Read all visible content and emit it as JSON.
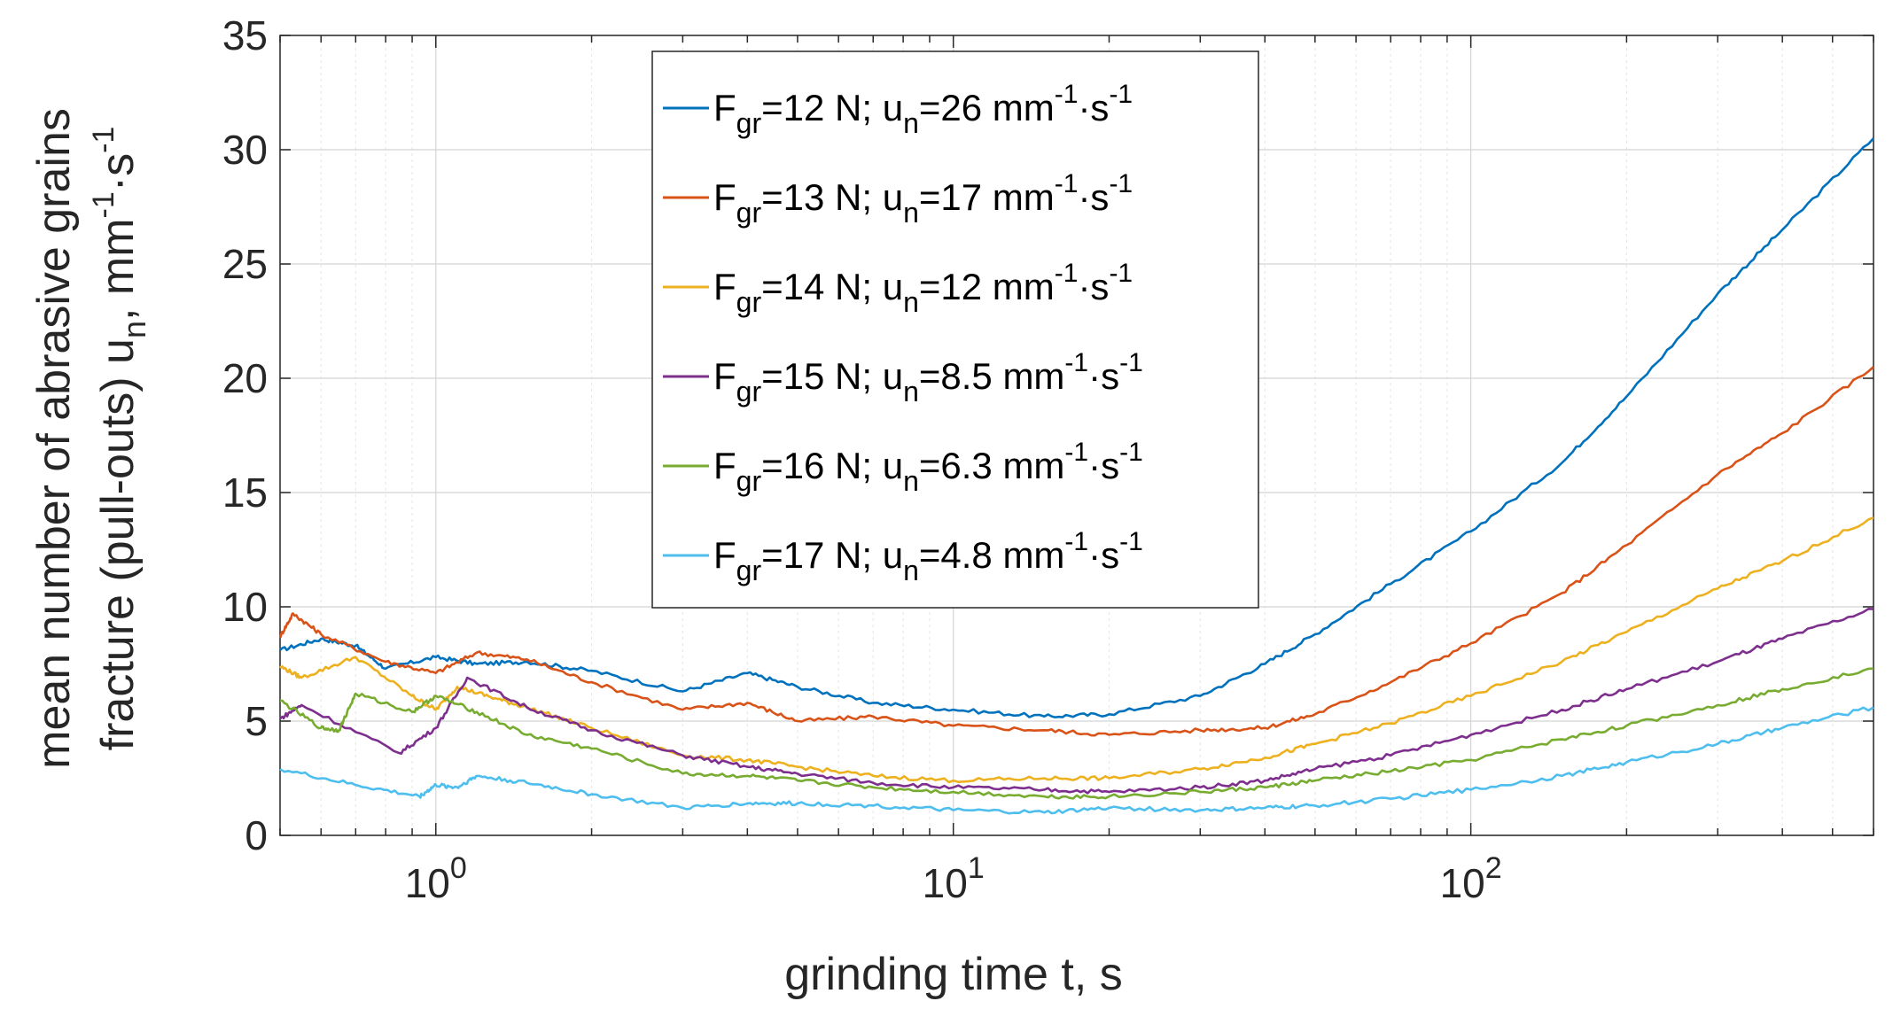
{
  "chart_data": {
    "type": "line",
    "xscale": "log",
    "xlim": [
      0.5,
      600
    ],
    "ylim": [
      0,
      35
    ],
    "yticks": [
      "0",
      "5",
      "10",
      "15",
      "20",
      "25",
      "30",
      "35"
    ],
    "xticks": [
      {
        "value": 1,
        "base": "10",
        "exp": "0"
      },
      {
        "value": 10,
        "base": "10",
        "exp": "1"
      },
      {
        "value": 100,
        "base": "10",
        "exp": "2"
      }
    ],
    "xlabel": "grinding time t, s",
    "ylabel": {
      "line1": "mean number of abrasive grains",
      "line2_main": "fracture (pull-outs) u",
      "line2_sub": "n",
      "line2_unit": ", mm",
      "line2_exp1": "-1",
      "line2_dot": "·s",
      "line2_exp2": "-1"
    },
    "grid": true,
    "legend_position": "top-center",
    "series": [
      {
        "name": "F_gr=12 N; u_n=26 mm^-1·s^-1",
        "force": "12",
        "un": "26",
        "color": "#0072BD",
        "x": [
          0.5,
          0.6,
          0.7,
          0.8,
          1.0,
          1.2,
          1.5,
          2,
          3,
          4,
          5,
          7,
          10,
          15,
          20,
          30,
          40,
          50,
          70,
          100,
          150,
          200,
          300,
          400,
          600
        ],
        "y": [
          8.1,
          8.6,
          8.3,
          7.3,
          7.8,
          7.5,
          7.6,
          7.2,
          6.3,
          7.1,
          6.5,
          5.8,
          5.5,
          5.2,
          5.3,
          6.1,
          7.5,
          8.8,
          11.0,
          13.3,
          16.3,
          19.2,
          23.7,
          26.5,
          30.5
        ]
      },
      {
        "name": "F_gr=13 N; u_n=17 mm^-1·s^-1",
        "force": "13",
        "un": "17",
        "color": "#D95319",
        "x": [
          0.5,
          0.53,
          0.6,
          0.8,
          1.0,
          1.2,
          1.5,
          2,
          3,
          4,
          5,
          7,
          10,
          15,
          20,
          30,
          40,
          50,
          70,
          100,
          150,
          200,
          300,
          400,
          600
        ],
        "y": [
          8.7,
          9.7,
          8.8,
          7.6,
          7.1,
          8.0,
          7.7,
          6.7,
          5.5,
          5.8,
          5.0,
          5.2,
          4.8,
          4.6,
          4.4,
          4.6,
          4.7,
          5.3,
          6.7,
          8.4,
          10.6,
          12.7,
          15.8,
          17.6,
          20.5
        ]
      },
      {
        "name": "F_gr=14 N; u_n=12 mm^-1·s^-1",
        "force": "14",
        "un": "12",
        "color": "#EDB120",
        "x": [
          0.5,
          0.55,
          0.7,
          0.9,
          1.0,
          1.1,
          1.3,
          1.5,
          2,
          3,
          4,
          5,
          7,
          10,
          15,
          20,
          30,
          40,
          50,
          70,
          100,
          150,
          200,
          300,
          400,
          600
        ],
        "y": [
          7.4,
          6.9,
          7.8,
          6.1,
          5.5,
          6.5,
          6.0,
          5.6,
          4.7,
          3.5,
          3.3,
          3.0,
          2.6,
          2.4,
          2.5,
          2.5,
          2.9,
          3.4,
          4.0,
          4.9,
          6.1,
          7.6,
          8.9,
          10.8,
          12.0,
          13.9
        ]
      },
      {
        "name": "F_gr=15 N; u_n=8.5 mm^-1·s^-1",
        "force": "15",
        "un": "8.5",
        "color": "#7E2F8E",
        "x": [
          0.5,
          0.55,
          0.85,
          1.0,
          1.15,
          1.5,
          2,
          3,
          4,
          5,
          7,
          10,
          15,
          20,
          30,
          40,
          50,
          70,
          100,
          150,
          200,
          300,
          400,
          600
        ],
        "y": [
          5.1,
          5.7,
          3.6,
          4.7,
          6.9,
          5.6,
          4.6,
          3.5,
          3.0,
          2.7,
          2.3,
          2.1,
          2.0,
          1.9,
          2.1,
          2.4,
          2.9,
          3.5,
          4.4,
          5.5,
          6.4,
          7.6,
          8.6,
          9.9
        ]
      },
      {
        "name": "F_gr=16 N; u_n=6.3 mm^-1·s^-1",
        "force": "16",
        "un": "6.3",
        "color": "#77AC30",
        "x": [
          0.5,
          0.6,
          0.65,
          0.7,
          0.9,
          1.0,
          1.2,
          1.5,
          2,
          3,
          4,
          5,
          7,
          10,
          15,
          20,
          30,
          40,
          50,
          70,
          100,
          150,
          200,
          300,
          400,
          600
        ],
        "y": [
          5.9,
          4.7,
          4.6,
          6.2,
          5.4,
          6.1,
          5.4,
          4.4,
          3.8,
          2.7,
          2.6,
          2.4,
          2.1,
          1.9,
          1.7,
          1.7,
          1.9,
          2.1,
          2.4,
          2.8,
          3.3,
          4.2,
          4.8,
          5.7,
          6.4,
          7.3
        ]
      },
      {
        "name": "F_gr=17 N; u_n=4.8 mm^-1·s^-1",
        "force": "17",
        "un": "4.8",
        "color": "#4DBEEE",
        "x": [
          0.5,
          0.7,
          0.93,
          1.0,
          1.1,
          1.2,
          1.5,
          2,
          3,
          4,
          5,
          7,
          10,
          15,
          20,
          30,
          40,
          50,
          70,
          100,
          150,
          200,
          300,
          400,
          600
        ],
        "y": [
          2.9,
          2.2,
          1.7,
          2.2,
          2.1,
          2.6,
          2.3,
          1.8,
          1.2,
          1.4,
          1.4,
          1.3,
          1.1,
          1.0,
          1.2,
          1.1,
          1.2,
          1.3,
          1.6,
          2.0,
          2.6,
          3.2,
          4.0,
          4.7,
          5.6
        ]
      }
    ]
  }
}
